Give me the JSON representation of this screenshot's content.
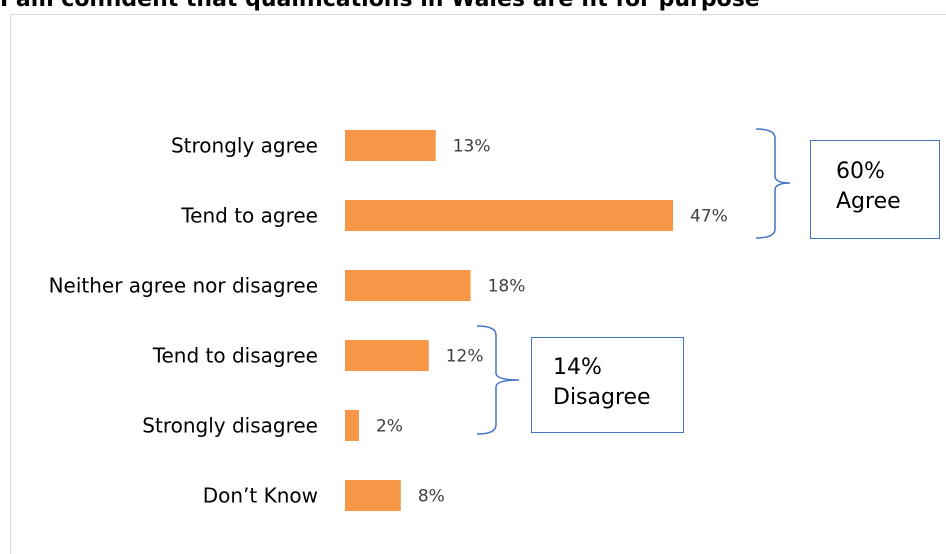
{
  "chart_data": {
    "type": "bar",
    "orientation": "horizontal",
    "title": "I am confident that qualifications in Wales are fit for purpose",
    "categories": [
      "Strongly agree",
      "Tend to agree",
      "Neither agree nor disagree",
      "Tend to disagree",
      "Strongly disagree",
      "Don’t Know"
    ],
    "values": [
      13,
      47,
      18,
      12,
      2,
      8
    ],
    "value_labels": [
      "13%",
      "47%",
      "18%",
      "12%",
      "2%",
      "8%"
    ],
    "unit": "%",
    "bar_color": "#f79646",
    "grid": false,
    "legend": "none"
  },
  "annotations": {
    "agree": {
      "value": "60%",
      "label": "Agree",
      "border_color": "#4472c4"
    },
    "disagree": {
      "value": "14%",
      "label": "Disagree",
      "border_color": "#4472c4"
    }
  }
}
